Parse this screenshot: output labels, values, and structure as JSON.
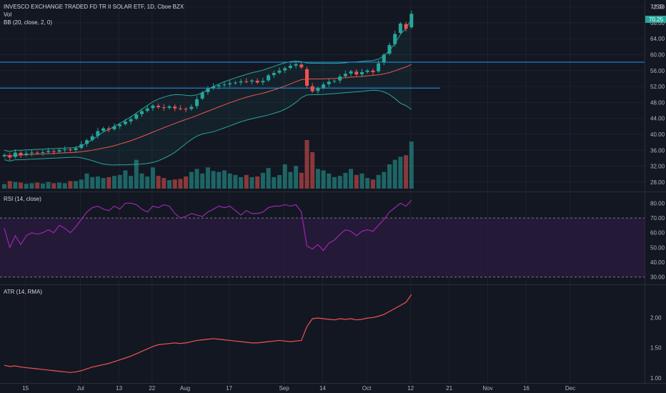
{
  "header": {
    "title": "INVESCO EXCHANGE TRADED FD TR II SOLAR ETF, 1D, Cboe BZX",
    "vol_label": "Vol",
    "bb_label": "BB (20, close, 2, 0)",
    "currency": "USD",
    "last_price": "70.25"
  },
  "x_axis": {
    "labels": [
      "15",
      "Jul",
      "13",
      "22",
      "Aug",
      "17",
      "Sep",
      "14",
      "Oct",
      "12",
      "21",
      "Nov",
      "16",
      "Dec"
    ]
  },
  "colors": {
    "background": "#131722",
    "up": "#26a69a",
    "down": "#ef5350",
    "bb_upper": "#26a69a",
    "bb_basis": "#f05350",
    "rsi_line": "#9c27b0",
    "rsi_band": "#2a1a3f",
    "atr_line": "#ef5350",
    "hline": "#2196f3"
  },
  "chart_data": [
    {
      "type": "candlestick",
      "title": "INVESCO EXCHANGE TRADED FD TR II SOLAR ETF, 1D, Cboe BZX",
      "ylim": [
        26,
        73
      ],
      "y_ticks": [
        "28.00",
        "32.00",
        "36.00",
        "40.00",
        "44.00",
        "48.00",
        "52.00",
        "56.00",
        "60.00",
        "64.00",
        "68.00",
        "72.00"
      ],
      "horizontal_lines": [
        58.1,
        51.6
      ],
      "series": [
        {
          "name": "",
          "closes": [
            34.8,
            34.2,
            35.4,
            34.8,
            35.2,
            35.4,
            35.3,
            35.5,
            35.8,
            35.6,
            36.0,
            36.2,
            36.0,
            36.5,
            37.5,
            38.5,
            39.5,
            40.8,
            41.5,
            41.2,
            42.0,
            42.5,
            43.2,
            43.8,
            45.0,
            45.8,
            46.5,
            47.2,
            46.8,
            46.6,
            47.0,
            46.5,
            46.4,
            46.3,
            46.9,
            48.8,
            50.5,
            51.5,
            52.0,
            52.3,
            52.5,
            52.8,
            53.0,
            53.3,
            53.2,
            53.5,
            53.0,
            53.4,
            54.8,
            55.4,
            56.0,
            56.6,
            57.2,
            57.6,
            56.8,
            52.2,
            50.8,
            51.6,
            52.5,
            53.2,
            53.4,
            54.5,
            55.2,
            55.8,
            55.0,
            55.6,
            56.0,
            55.6,
            57.8,
            60.0,
            62.4,
            65.2,
            67.8,
            66.5,
            70.25
          ]
        }
      ]
    },
    {
      "type": "bar",
      "title": "Vol",
      "series": [
        {
          "name": "",
          "values": [
            1.5,
            2.5,
            2.2,
            2.0,
            1.6,
            1.8,
            2.0,
            1.7,
            2.2,
            1.8,
            2.0,
            1.8,
            2.5,
            2.5,
            3.0,
            5.0,
            3.8,
            4.0,
            3.5,
            3.8,
            4.2,
            4.5,
            6.0,
            4.2,
            9.5,
            5.0,
            4.0,
            7.0,
            4.2,
            3.5,
            2.8,
            3.0,
            3.2,
            4.0,
            5.5,
            6.5,
            5.0,
            7.0,
            5.8,
            5.5,
            6.0,
            5.0,
            4.5,
            3.8,
            4.5,
            3.8,
            4.0,
            5.2,
            6.8,
            3.8,
            4.5,
            8.0,
            5.5,
            7.5,
            5.2,
            16.0,
            12.0,
            6.5,
            6.0,
            5.0,
            3.8,
            4.2,
            5.2,
            6.5,
            4.5,
            5.0,
            3.5,
            3.0,
            4.5,
            5.5,
            8.0,
            9.5,
            10.5,
            11.0,
            15.5
          ]
        }
      ]
    },
    {
      "type": "line",
      "title": "RSI (14, close)",
      "ylim": [
        26,
        86
      ],
      "y_ticks": [
        "30.00",
        "40.00",
        "50.00",
        "60.00",
        "70.00",
        "80.00"
      ],
      "band": [
        30,
        70
      ],
      "series": [
        {
          "name": "",
          "values": [
            63,
            50,
            58,
            52,
            58,
            60,
            59,
            60,
            62,
            60,
            65,
            63,
            60,
            64,
            69,
            74,
            77,
            78,
            76,
            75,
            78,
            76,
            80,
            80,
            79,
            76,
            74,
            78,
            77,
            79,
            78,
            73,
            70,
            71,
            73,
            72,
            71,
            74,
            76,
            78,
            77,
            78,
            75,
            72,
            75,
            73,
            73,
            74,
            77,
            78,
            78,
            79,
            78,
            79,
            74,
            51,
            49,
            52,
            48,
            53,
            55,
            59,
            62,
            61,
            58,
            61,
            62,
            61,
            65,
            69,
            74,
            77,
            80,
            78,
            82
          ]
        }
      ]
    },
    {
      "type": "line",
      "title": "ATR (14, RMA)",
      "ylim": [
        0.94,
        2.5
      ],
      "y_ticks": [
        "1.00",
        "1.50",
        "2.00"
      ],
      "series": [
        {
          "name": "",
          "values": [
            1.21,
            1.19,
            1.2,
            1.18,
            1.17,
            1.16,
            1.15,
            1.14,
            1.13,
            1.12,
            1.11,
            1.1,
            1.09,
            1.1,
            1.12,
            1.15,
            1.18,
            1.2,
            1.22,
            1.24,
            1.27,
            1.3,
            1.33,
            1.36,
            1.4,
            1.44,
            1.48,
            1.52,
            1.55,
            1.56,
            1.57,
            1.58,
            1.57,
            1.58,
            1.6,
            1.62,
            1.63,
            1.64,
            1.65,
            1.64,
            1.63,
            1.62,
            1.61,
            1.6,
            1.59,
            1.58,
            1.58,
            1.59,
            1.6,
            1.61,
            1.62,
            1.61,
            1.6,
            1.61,
            1.62,
            1.85,
            1.98,
            1.99,
            1.98,
            1.97,
            1.96,
            1.98,
            1.97,
            1.98,
            1.96,
            1.97,
            1.99,
            2.0,
            2.02,
            2.05,
            2.1,
            2.15,
            2.2,
            2.25,
            2.38
          ]
        }
      ]
    }
  ]
}
